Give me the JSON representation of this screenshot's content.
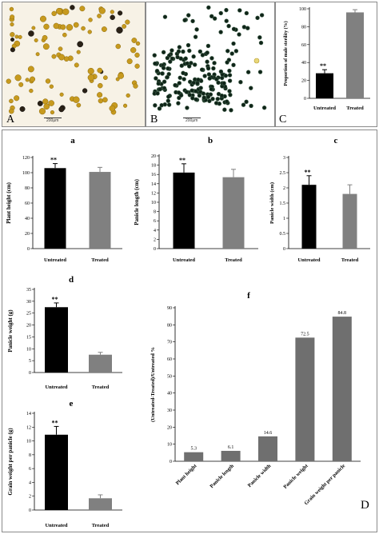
{
  "figure": {
    "panel_labels": {
      "A": "A",
      "B": "B",
      "C": "C",
      "D": "D"
    },
    "scale_bar_text": "200μm"
  },
  "colors": {
    "black_bar": "#000000",
    "grey_bar": "#808080",
    "f_bar": "#6f6f6f",
    "microA_bg": "#f7f2e6",
    "microB_bg": "#ffffff"
  },
  "chart_data": [
    {
      "id": "C",
      "type": "bar",
      "categories": [
        "Untreated",
        "Treated"
      ],
      "values": [
        28,
        96
      ],
      "errors": [
        4,
        3
      ],
      "significance": [
        "**",
        ""
      ],
      "ylabel": "Proportion of male sterility (%)",
      "ylim": [
        0,
        100
      ],
      "yticks": [
        0,
        20,
        40,
        60,
        80,
        100
      ]
    },
    {
      "id": "a",
      "type": "bar",
      "panel_label": "a",
      "categories": [
        "Untreated",
        "Treated"
      ],
      "values": [
        106,
        101
      ],
      "errors": [
        6,
        6
      ],
      "significance": [
        "**",
        ""
      ],
      "ylabel": "Plant height (cm)",
      "ylim": [
        0,
        120
      ],
      "yticks": [
        0,
        20,
        40,
        60,
        80,
        100,
        120
      ]
    },
    {
      "id": "b",
      "type": "bar",
      "panel_label": "b",
      "categories": [
        "Untreated",
        "Treated"
      ],
      "values": [
        16.4,
        15.4
      ],
      "errors": [
        1.9,
        1.7
      ],
      "significance": [
        "**",
        ""
      ],
      "ylabel": "Panicle length (cm)",
      "ylim": [
        0,
        20
      ],
      "yticks": [
        0,
        2,
        4,
        6,
        8,
        10,
        12,
        14,
        16,
        18,
        20
      ]
    },
    {
      "id": "c",
      "type": "bar",
      "panel_label": "c",
      "categories": [
        "Untreated",
        "Treated"
      ],
      "values": [
        2.1,
        1.8
      ],
      "errors": [
        0.3,
        0.3
      ],
      "significance": [
        "**",
        ""
      ],
      "ylabel": "Panicle width (cm)",
      "ylim": [
        0,
        3
      ],
      "yticks": [
        0,
        0.5,
        1,
        1.5,
        2,
        2.5,
        3
      ],
      "ytick_labels": [
        "0",
        "0.5",
        "1",
        "1.5",
        "2",
        "2.5",
        "3"
      ]
    },
    {
      "id": "d",
      "type": "bar",
      "panel_label": "d",
      "categories": [
        "Untreated",
        "Treated"
      ],
      "values": [
        27.5,
        7.5
      ],
      "errors": [
        1.8,
        1.0
      ],
      "significance": [
        "**",
        ""
      ],
      "ylabel": "Panicle weight (g)",
      "ylim": [
        0,
        35
      ],
      "yticks": [
        0,
        5,
        10,
        15,
        20,
        25,
        30,
        35
      ]
    },
    {
      "id": "e",
      "type": "bar",
      "panel_label": "e",
      "categories": [
        "Untreated",
        "Treated"
      ],
      "values": [
        10.9,
        1.7
      ],
      "errors": [
        1.2,
        0.5
      ],
      "significance": [
        "**",
        ""
      ],
      "ylabel": "Grain weight per panicle (g)",
      "ylim": [
        0,
        14
      ],
      "yticks": [
        0,
        2,
        4,
        6,
        8,
        10,
        12,
        14
      ]
    },
    {
      "id": "f",
      "type": "bar",
      "panel_label": "f",
      "categories": [
        "Plant height",
        "Panicle length",
        "Panicle width",
        "Panicle weight",
        "Grain weight per panicle"
      ],
      "values": [
        5.3,
        6.1,
        14.6,
        72.5,
        84.8
      ],
      "data_labels": [
        "5.3",
        "6.1",
        "14.6",
        "72.5",
        "84.8"
      ],
      "ylabel": "(Untreated-Treated)/Untreated %",
      "ylim": [
        0,
        90
      ],
      "yticks": [
        0,
        10,
        20,
        30,
        40,
        50,
        60,
        70,
        80,
        90
      ]
    }
  ]
}
